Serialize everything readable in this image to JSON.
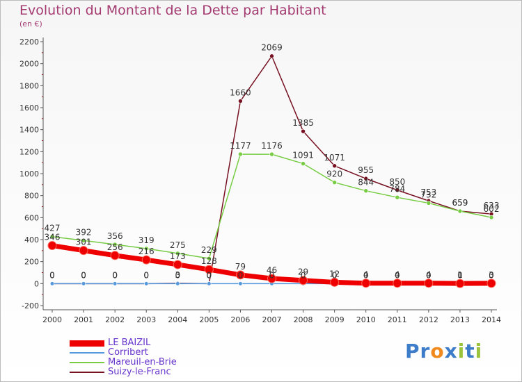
{
  "title": "Evolution du Montant de la Dette par Habitant",
  "subtitle": "(en €)",
  "logo": {
    "letters": [
      "P",
      "r",
      "o",
      "x",
      "i",
      "t",
      "i"
    ],
    "colors": [
      "#3d7cc9",
      "#3d7cc9",
      "#f08a1c",
      "#3d7cc9",
      "#9bc33c",
      "#3d7cc9",
      "#9bc33c"
    ]
  },
  "chart_data": {
    "type": "line",
    "title": "Evolution du Montant de la Dette par Habitant",
    "subtitle": "(en €)",
    "xlabel": "",
    "ylabel": "",
    "x": [
      "2000",
      "2001",
      "2002",
      "2003",
      "2004",
      "2005",
      "2006",
      "2007",
      "2008",
      "2009",
      "2010",
      "2011",
      "2012",
      "2013",
      "2014"
    ],
    "ylim": [
      -200,
      2200
    ],
    "yticks": [
      -200,
      0,
      200,
      400,
      600,
      800,
      1000,
      1200,
      1400,
      1600,
      1800,
      2000,
      2200
    ],
    "grid": false,
    "legend_position": "bottom-left",
    "series": [
      {
        "name": "LE BAIZIL",
        "color": "#ee0000",
        "values": [
          346,
          301,
          256,
          216,
          173,
          128,
          79,
          46,
          29,
          12,
          4,
          4,
          4,
          1,
          3
        ],
        "labels": [
          "346",
          "301",
          "256",
          "216",
          "173",
          "128",
          "79",
          "46",
          "29",
          "12",
          "4",
          "4",
          "4",
          "1",
          "3"
        ]
      },
      {
        "name": "Corribert",
        "color": "#5599dd",
        "values": [
          0,
          0,
          0,
          0,
          0,
          0,
          0,
          0,
          0,
          0,
          0,
          0,
          0,
          0,
          0
        ],
        "labels": [
          "0",
          "0",
          "0",
          "0",
          "0",
          "0",
          "0",
          "0",
          "0",
          "0",
          "0",
          "0",
          "0",
          "0",
          "0"
        ]
      },
      {
        "name": "Mareuil-en-Brie",
        "color": "#77cc44",
        "values": [
          427,
          392,
          356,
          319,
          275,
          229,
          1177,
          1176,
          1091,
          920,
          844,
          784,
          732,
          659,
          602
        ],
        "labels": [
          "427",
          "392",
          "356",
          "319",
          "275",
          "229",
          "1177",
          "1176",
          "1091",
          "920",
          "844",
          "784",
          "732",
          "659",
          "602"
        ]
      },
      {
        "name": "Suizy-le-Franc",
        "color": "#771122",
        "values": [
          0,
          0,
          0,
          0,
          3,
          0,
          1660,
          2069,
          1385,
          1071,
          955,
          850,
          753,
          659,
          633
        ],
        "labels": [
          "0",
          "0",
          "0",
          "0",
          "3",
          "0",
          "1660",
          "2069",
          "1385",
          "1071",
          "955",
          "850",
          "753",
          "659",
          "633"
        ]
      }
    ]
  }
}
